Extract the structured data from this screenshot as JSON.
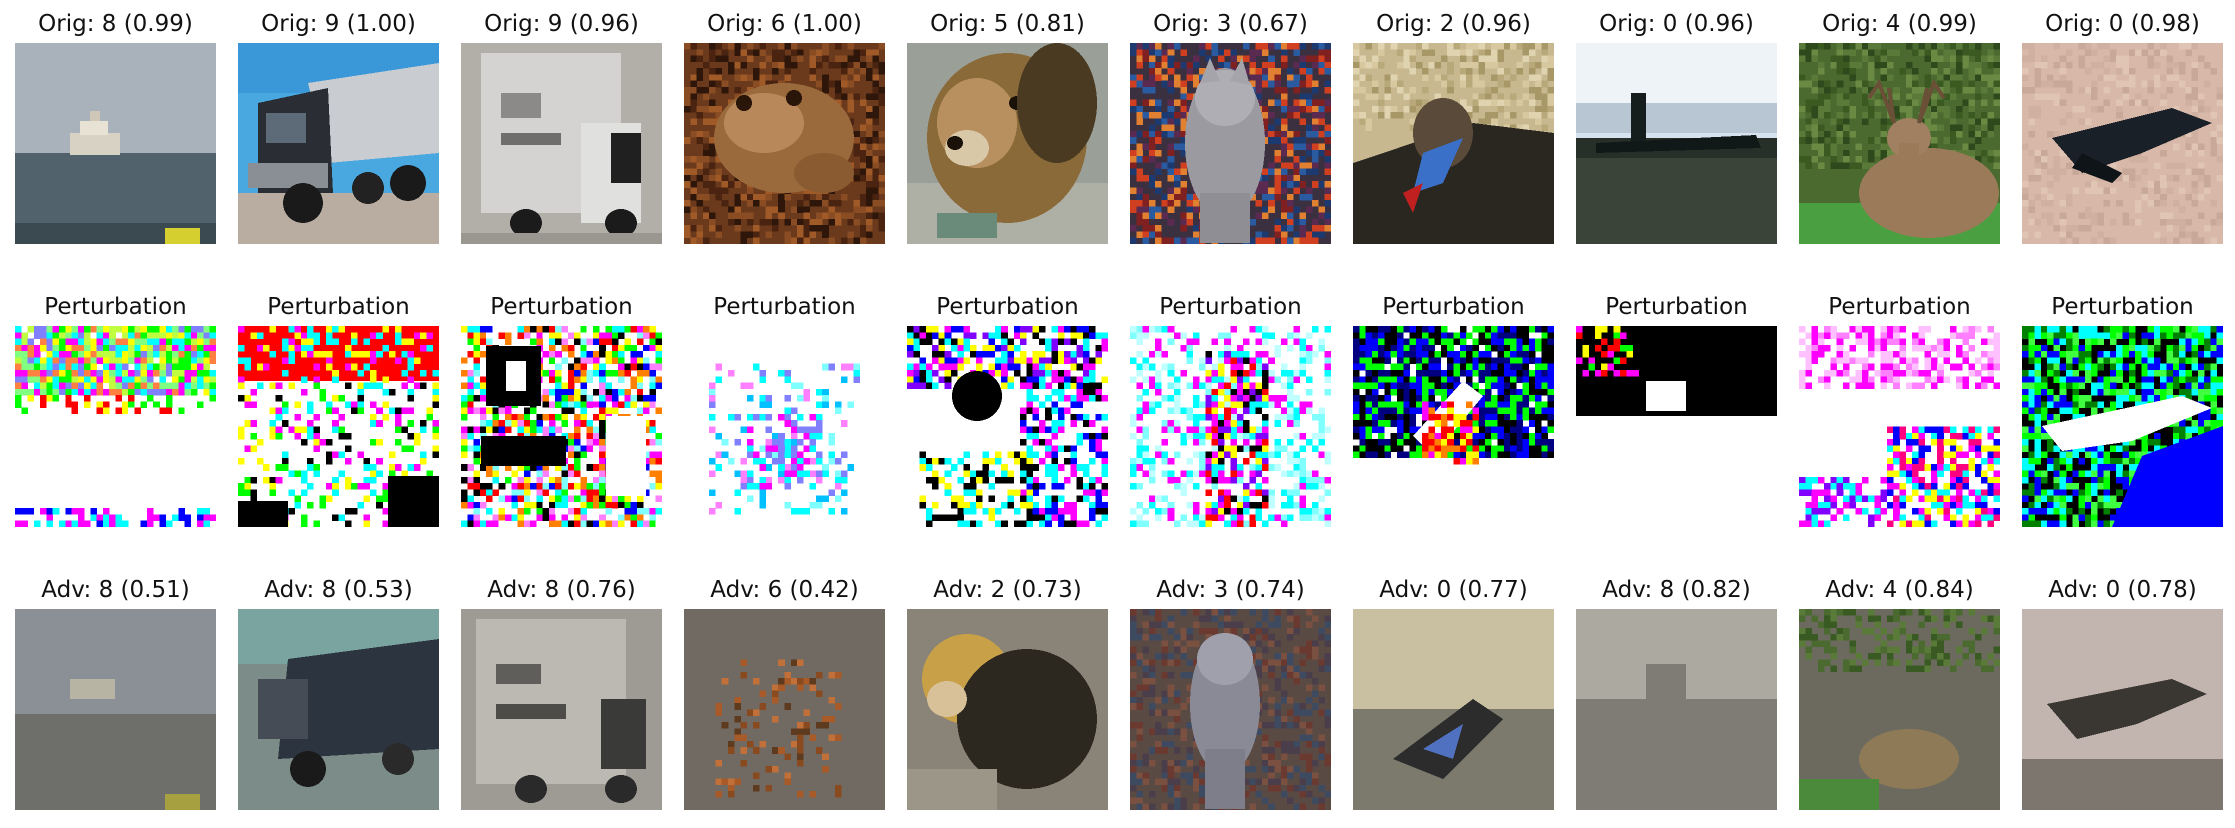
{
  "rows": [
    {
      "kind": "original",
      "cells": [
        {
          "title": "Orig: 8 (0.99)",
          "scene": "ship"
        },
        {
          "title": "Orig: 9 (1.00)",
          "scene": "truck-blue"
        },
        {
          "title": "Orig: 9 (0.96)",
          "scene": "truck-white"
        },
        {
          "title": "Orig: 6 (1.00)",
          "scene": "frog"
        },
        {
          "title": "Orig: 5 (0.81)",
          "scene": "dog"
        },
        {
          "title": "Orig: 3 (0.67)",
          "scene": "cat"
        },
        {
          "title": "Orig: 2 (0.96)",
          "scene": "bird"
        },
        {
          "title": "Orig: 0 (0.96)",
          "scene": "airplane"
        },
        {
          "title": "Orig: 4 (0.99)",
          "scene": "deer"
        },
        {
          "title": "Orig: 0 (0.98)",
          "scene": "airplane-sand"
        }
      ]
    },
    {
      "kind": "perturbation",
      "cells": [
        {
          "title": "Perturbation",
          "scene": "pert-ship"
        },
        {
          "title": "Perturbation",
          "scene": "pert-truck-blue"
        },
        {
          "title": "Perturbation",
          "scene": "pert-truck-white"
        },
        {
          "title": "Perturbation",
          "scene": "pert-frog"
        },
        {
          "title": "Perturbation",
          "scene": "pert-dog"
        },
        {
          "title": "Perturbation",
          "scene": "pert-cat"
        },
        {
          "title": "Perturbation",
          "scene": "pert-bird"
        },
        {
          "title": "Perturbation",
          "scene": "pert-airplane"
        },
        {
          "title": "Perturbation",
          "scene": "pert-deer"
        },
        {
          "title": "Perturbation",
          "scene": "pert-airplane-sand"
        }
      ]
    },
    {
      "kind": "adversarial",
      "cells": [
        {
          "title": "Adv: 8 (0.51)",
          "scene": "adv-ship"
        },
        {
          "title": "Adv: 8 (0.53)",
          "scene": "adv-truck-blue"
        },
        {
          "title": "Adv: 8 (0.76)",
          "scene": "adv-truck-white"
        },
        {
          "title": "Adv: 6 (0.42)",
          "scene": "adv-frog"
        },
        {
          "title": "Adv: 2 (0.73)",
          "scene": "adv-dog"
        },
        {
          "title": "Adv: 3 (0.74)",
          "scene": "adv-cat"
        },
        {
          "title": "Adv: 0 (0.77)",
          "scene": "adv-bird"
        },
        {
          "title": "Adv: 8 (0.82)",
          "scene": "adv-airplane"
        },
        {
          "title": "Adv: 4 (0.84)",
          "scene": "adv-deer"
        },
        {
          "title": "Adv: 0 (0.78)",
          "scene": "adv-airplane-sand"
        }
      ]
    }
  ]
}
